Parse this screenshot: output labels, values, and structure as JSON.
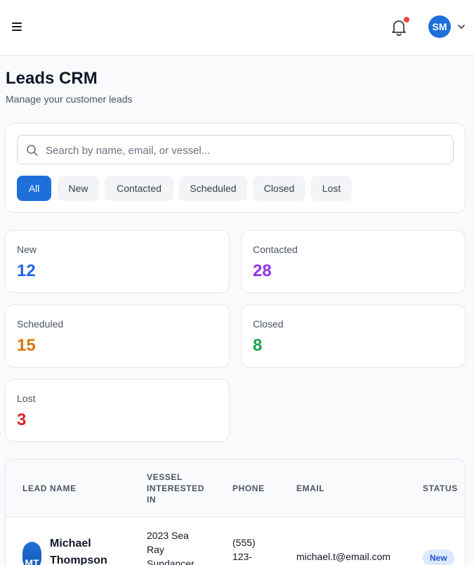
{
  "header": {
    "avatar_initials": "SM"
  },
  "page": {
    "title": "Leads CRM",
    "subtitle": "Manage your customer leads"
  },
  "search": {
    "placeholder": "Search by name, email, or vessel..."
  },
  "filters": [
    "All",
    "New",
    "Contacted",
    "Scheduled",
    "Closed",
    "Lost"
  ],
  "active_filter": "All",
  "stats": [
    {
      "label": "New",
      "value": "12",
      "color": "#2563eb"
    },
    {
      "label": "Contacted",
      "value": "28",
      "color": "#9333ea"
    },
    {
      "label": "Scheduled",
      "value": "15",
      "color": "#d97706"
    },
    {
      "label": "Closed",
      "value": "8",
      "color": "#16a34a"
    },
    {
      "label": "Lost",
      "value": "3",
      "color": "#dc2626"
    }
  ],
  "table": {
    "columns": {
      "lead_name": "LEAD NAME",
      "vessel_line1": "VESSEL",
      "vessel_line2": "INTERESTED",
      "vessel_line3": "IN",
      "phone": "PHONE",
      "email": "EMAIL",
      "status": "STATUS"
    },
    "rows": [
      {
        "initials": "MT",
        "name_first": "Michael",
        "name_last": "Thompson",
        "vessel_line1": "2023 Sea",
        "vessel_line2": "Ray",
        "vessel_line3": "Sundancer",
        "phone_line1": "(555)",
        "phone_line2": "123-",
        "email": "michael.t@email.com",
        "status": "New"
      }
    ]
  },
  "icons": {
    "menu": "hamburger-icon",
    "notifications": "bell-icon",
    "dropdown": "chevron-down-icon",
    "search": "search-icon"
  },
  "colors": {
    "accent": "#1e6fd9",
    "notification_dot": "#ef4444"
  }
}
